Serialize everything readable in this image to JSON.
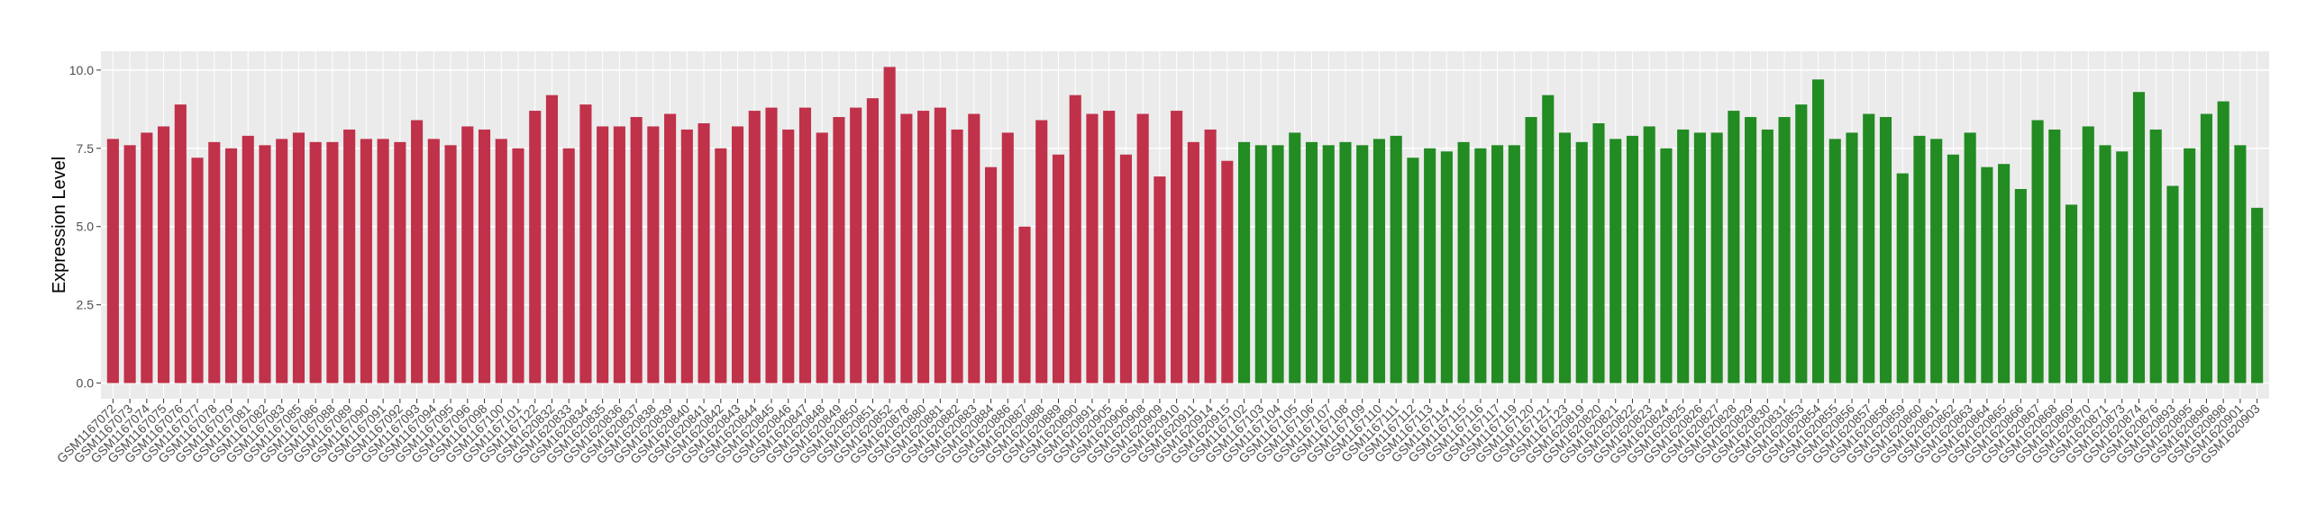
{
  "chart_data": {
    "type": "bar",
    "y_label": "Expression Level",
    "ylim": [
      -0.5,
      10.6
    ],
    "yticks": [
      {
        "value": 0,
        "label": "0.0"
      },
      {
        "value": 2.5,
        "label": "2.5"
      },
      {
        "value": 5,
        "label": "5.0"
      },
      {
        "value": 7.5,
        "label": "7.5"
      },
      {
        "value": 10,
        "label": "10.0"
      }
    ],
    "grid": true,
    "series": [
      {
        "color": "#c0314a",
        "categories": [
          "GSM1167072",
          "GSM1167073",
          "GSM1167074",
          "GSM1167075",
          "GSM1167076",
          "GSM1167077",
          "GSM1167078",
          "GSM1167079",
          "GSM1167081",
          "GSM1167082",
          "GSM1167083",
          "GSM1167085",
          "GSM1167086",
          "GSM1167088",
          "GSM1167089",
          "GSM1167090",
          "GSM1167091",
          "GSM1167092",
          "GSM1167093",
          "GSM1167094",
          "GSM1167095",
          "GSM1167096",
          "GSM1167098",
          "GSM1167100",
          "GSM1167101",
          "GSM1167122",
          "GSM1620832",
          "GSM1620833",
          "GSM1620834",
          "GSM1620835",
          "GSM1620836",
          "GSM1620837",
          "GSM1620838",
          "GSM1620839",
          "GSM1620840",
          "GSM1620841",
          "GSM1620842",
          "GSM1620843",
          "GSM1620844",
          "GSM1620845",
          "GSM1620846",
          "GSM1620847",
          "GSM1620848",
          "GSM1620849",
          "GSM1620850",
          "GSM1620851",
          "GSM1620852",
          "GSM1620878",
          "GSM1620880",
          "GSM1620881",
          "GSM1620882",
          "GSM1620883",
          "GSM1620884",
          "GSM1620886",
          "GSM1620887",
          "GSM1620888",
          "GSM1620889",
          "GSM1620890",
          "GSM1620891",
          "GSM1620905",
          "GSM1620906",
          "GSM1620908",
          "GSM1620909",
          "GSM1620910",
          "GSM1620911",
          "GSM1620914",
          "GSM1620915"
        ],
        "values": [
          7.8,
          7.6,
          8.0,
          8.2,
          8.9,
          7.2,
          7.7,
          7.5,
          7.9,
          7.6,
          7.8,
          8.0,
          7.7,
          7.7,
          8.1,
          7.8,
          7.8,
          7.7,
          8.4,
          7.8,
          7.6,
          8.2,
          8.1,
          7.8,
          7.5,
          8.7,
          9.2,
          7.5,
          8.9,
          8.2,
          8.2,
          8.5,
          8.2,
          8.6,
          8.1,
          8.3,
          7.5,
          8.2,
          8.7,
          8.8,
          8.1,
          8.8,
          8.0,
          8.5,
          8.8,
          9.1,
          10.1,
          8.6,
          8.7,
          8.8,
          8.1,
          8.6,
          6.9,
          8.0,
          5.0,
          8.4,
          7.3,
          9.2,
          8.6,
          8.7,
          7.3,
          8.6,
          6.6,
          8.7,
          7.7,
          8.1,
          7.1
        ]
      },
      {
        "color": "#228b22",
        "categories": [
          "GSM1167102",
          "GSM1167103",
          "GSM1167104",
          "GSM1167105",
          "GSM1167106",
          "GSM1167107",
          "GSM1167108",
          "GSM1167109",
          "GSM1167110",
          "GSM1167111",
          "GSM1167112",
          "GSM1167113",
          "GSM1167114",
          "GSM1167115",
          "GSM1167116",
          "GSM1167117",
          "GSM1167119",
          "GSM1167120",
          "GSM1167121",
          "GSM1167123",
          "GSM1620819",
          "GSM1620820",
          "GSM1620821",
          "GSM1620822",
          "GSM1620823",
          "GSM1620824",
          "GSM1620825",
          "GSM1620826",
          "GSM1620827",
          "GSM1620828",
          "GSM1620829",
          "GSM1620830",
          "GSM1620831",
          "GSM1620853",
          "GSM1620854",
          "GSM1620855",
          "GSM1620856",
          "GSM1620857",
          "GSM1620858",
          "GSM1620859",
          "GSM1620860",
          "GSM1620861",
          "GSM1620862",
          "GSM1620863",
          "GSM1620864",
          "GSM1620865",
          "GSM1620866",
          "GSM1620867",
          "GSM1620868",
          "GSM1620869",
          "GSM1620870",
          "GSM1620871",
          "GSM1620873",
          "GSM1620874",
          "GSM1620876",
          "GSM1620893",
          "GSM1620895",
          "GSM1620896",
          "GSM1620898",
          "GSM1620901",
          "GSM1620903"
        ],
        "values": [
          7.7,
          7.6,
          7.6,
          8.0,
          7.7,
          7.6,
          7.7,
          7.6,
          7.8,
          7.9,
          7.2,
          7.5,
          7.4,
          7.7,
          7.5,
          7.6,
          7.6,
          8.5,
          9.2,
          8.0,
          7.7,
          8.3,
          7.8,
          7.9,
          8.2,
          7.5,
          8.1,
          8.0,
          8.0,
          8.7,
          8.5,
          8.1,
          8.5,
          8.9,
          9.7,
          7.8,
          8.0,
          8.6,
          8.5,
          6.7,
          7.9,
          7.8,
          7.3,
          8.0,
          6.9,
          7.0,
          6.2,
          8.4,
          8.1,
          5.7,
          8.2,
          7.6,
          7.4,
          9.3,
          8.1,
          6.3,
          7.5,
          8.6,
          9.0,
          7.6,
          5.6
        ]
      }
    ]
  }
}
